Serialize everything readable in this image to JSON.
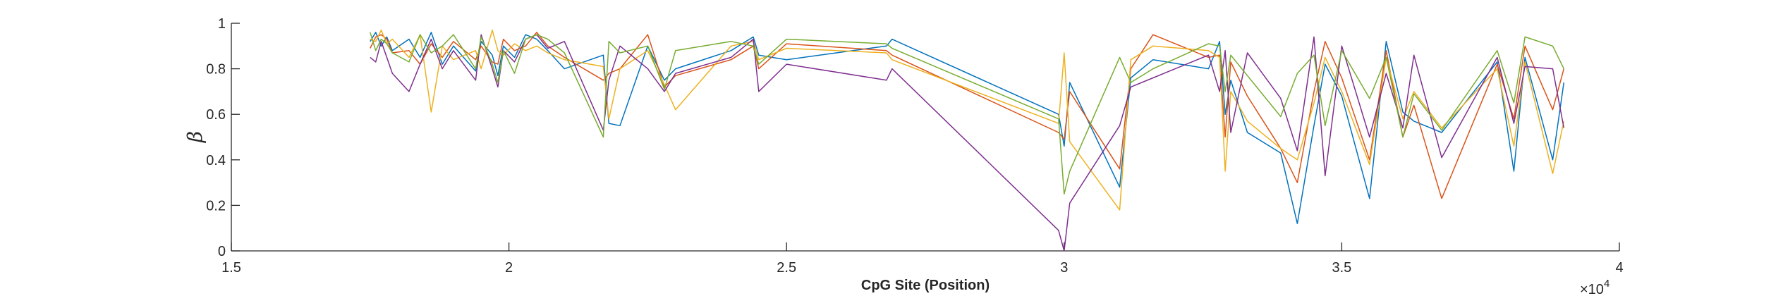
{
  "chart_data": {
    "type": "line",
    "title": "",
    "xlabel": "CpG Site (Position)",
    "ylabel": "β",
    "xlim": [
      15000,
      40000
    ],
    "ylim": [
      0,
      1
    ],
    "x_ticks": [
      15000,
      20000,
      25000,
      30000,
      35000,
      40000
    ],
    "x_tick_labels": [
      "1.5",
      "2",
      "2.5",
      "3",
      "3.5",
      "4"
    ],
    "x_exponent_base": "×10",
    "x_exponent_power": "4",
    "y_ticks": [
      0,
      0.2,
      0.4,
      0.6,
      0.8,
      1
    ],
    "y_tick_labels": [
      "0",
      "0.2",
      "0.4",
      "0.6",
      "0.8",
      "1"
    ],
    "grid": false,
    "colors": [
      "#0072BD",
      "#D95319",
      "#EDB120",
      "#7E2F8E",
      "#77AC30"
    ],
    "x": [
      17500,
      17600,
      17700,
      17800,
      17900,
      18200,
      18400,
      18600,
      18800,
      19000,
      19400,
      19500,
      19700,
      19800,
      19900,
      20100,
      20300,
      20500,
      20700,
      21000,
      21700,
      21800,
      22000,
      22500,
      22800,
      23000,
      24000,
      24400,
      24500,
      25000,
      26800,
      26900,
      29900,
      30000,
      30100,
      31000,
      31200,
      31600,
      32600,
      32800,
      32900,
      33000,
      33300,
      33900,
      34200,
      34500,
      34700,
      35000,
      35500,
      35800,
      36100,
      36300,
      36800,
      37800,
      38100,
      38300,
      38800,
      39000
    ],
    "series": [
      {
        "values": [
          0.92,
          0.96,
          0.9,
          0.94,
          0.88,
          0.93,
          0.85,
          0.96,
          0.82,
          0.9,
          0.79,
          0.92,
          0.86,
          0.77,
          0.9,
          0.85,
          0.95,
          0.93,
          0.88,
          0.8,
          0.86,
          0.56,
          0.55,
          0.9,
          0.75,
          0.8,
          0.88,
          0.94,
          0.86,
          0.84,
          0.9,
          0.93,
          0.6,
          0.46,
          0.74,
          0.28,
          0.76,
          0.84,
          0.8,
          0.92,
          0.6,
          0.75,
          0.52,
          0.43,
          0.12,
          0.55,
          0.82,
          0.68,
          0.23,
          0.92,
          0.61,
          0.57,
          0.52,
          0.83,
          0.35,
          0.85,
          0.4,
          0.74
        ]
      },
      {
        "values": [
          0.89,
          0.94,
          0.95,
          0.93,
          0.87,
          0.88,
          0.82,
          0.91,
          0.85,
          0.92,
          0.84,
          0.9,
          0.83,
          0.82,
          0.93,
          0.88,
          0.9,
          0.96,
          0.9,
          0.85,
          0.75,
          0.78,
          0.8,
          0.95,
          0.72,
          0.77,
          0.84,
          0.9,
          0.8,
          0.91,
          0.88,
          0.86,
          0.52,
          0.49,
          0.7,
          0.36,
          0.8,
          0.95,
          0.85,
          0.86,
          0.5,
          0.83,
          0.68,
          0.45,
          0.3,
          0.7,
          0.92,
          0.76,
          0.4,
          0.88,
          0.5,
          0.64,
          0.23,
          0.82,
          0.58,
          0.9,
          0.62,
          0.8
        ]
      },
      {
        "values": [
          0.93,
          0.92,
          0.97,
          0.91,
          0.93,
          0.85,
          0.95,
          0.61,
          0.9,
          0.84,
          0.88,
          0.8,
          0.97,
          0.88,
          0.86,
          0.91,
          0.88,
          0.9,
          0.87,
          0.84,
          0.81,
          0.58,
          0.8,
          0.88,
          0.73,
          0.62,
          0.9,
          0.92,
          0.84,
          0.89,
          0.87,
          0.84,
          0.56,
          0.87,
          0.48,
          0.18,
          0.84,
          0.9,
          0.88,
          0.85,
          0.35,
          0.7,
          0.57,
          0.45,
          0.4,
          0.65,
          0.85,
          0.7,
          0.38,
          0.85,
          0.58,
          0.7,
          0.54,
          0.8,
          0.46,
          0.83,
          0.34,
          0.57
        ]
      },
      {
        "values": [
          0.85,
          0.83,
          0.92,
          0.85,
          0.78,
          0.7,
          0.82,
          0.93,
          0.8,
          0.88,
          0.75,
          0.95,
          0.8,
          0.72,
          0.88,
          0.83,
          0.93,
          0.95,
          0.89,
          0.92,
          0.53,
          0.75,
          0.9,
          0.8,
          0.7,
          0.78,
          0.85,
          0.93,
          0.7,
          0.82,
          0.75,
          0.8,
          0.09,
          0.0,
          0.21,
          0.55,
          0.72,
          0.76,
          0.86,
          0.7,
          0.88,
          0.52,
          0.87,
          0.67,
          0.44,
          0.94,
          0.33,
          0.9,
          0.5,
          0.78,
          0.54,
          0.86,
          0.41,
          0.85,
          0.56,
          0.81,
          0.8,
          0.54
        ]
      },
      {
        "values": [
          0.96,
          0.88,
          0.93,
          0.91,
          0.87,
          0.83,
          0.95,
          0.87,
          0.9,
          0.95,
          0.8,
          0.94,
          0.82,
          0.74,
          0.88,
          0.78,
          0.93,
          0.95,
          0.93,
          0.87,
          0.5,
          0.92,
          0.87,
          0.9,
          0.71,
          0.88,
          0.92,
          0.9,
          0.82,
          0.93,
          0.91,
          0.89,
          0.58,
          0.25,
          0.35,
          0.85,
          0.74,
          0.8,
          0.91,
          0.9,
          0.7,
          0.86,
          0.77,
          0.59,
          0.78,
          0.86,
          0.55,
          0.88,
          0.67,
          0.85,
          0.5,
          0.69,
          0.53,
          0.88,
          0.65,
          0.94,
          0.9,
          0.8
        ]
      }
    ]
  }
}
